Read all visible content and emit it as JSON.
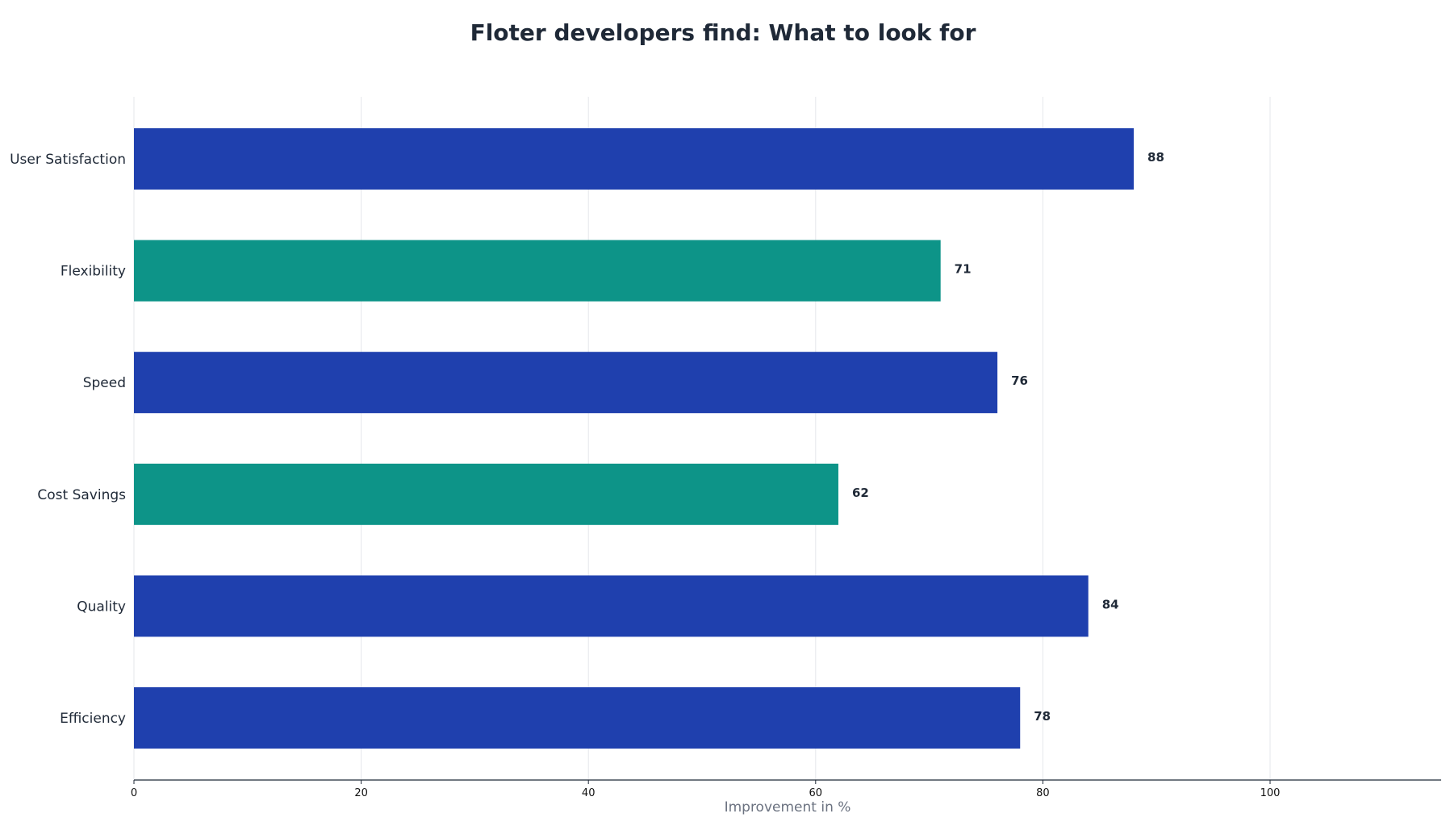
{
  "chart_data": {
    "type": "bar",
    "orientation": "horizontal",
    "title": "Floter developers find: What to look for",
    "xlabel": "Improvement in %",
    "ylabel": "",
    "categories": [
      "User Satisfaction",
      "Flexibility",
      "Speed",
      "Cost Savings",
      "Quality",
      "Efficiency"
    ],
    "values": [
      88,
      71,
      76,
      62,
      84,
      78
    ],
    "bar_colors": [
      "#1f40ae",
      "#0d9488",
      "#1f40ae",
      "#0d9488",
      "#1f40ae",
      "#1f40ae"
    ],
    "xlim": [
      0,
      115
    ],
    "xticks": [
      0,
      20,
      40,
      60,
      80,
      100
    ],
    "grid": "vertical",
    "data_labels": true
  }
}
